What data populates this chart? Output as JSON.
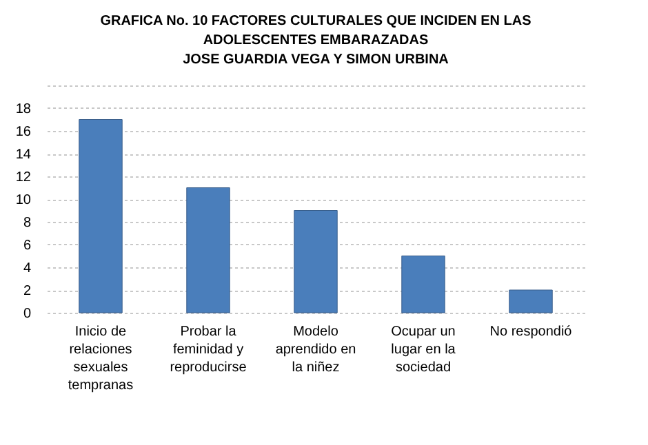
{
  "chart_data": {
    "type": "bar",
    "title": "GRAFICA No. 10 FACTORES CULTURALES QUE INCIDEN EN LAS ADOLESCENTES EMBARAZADAS",
    "subtitle": "JOSE GUARDIA VEGA Y SIMON URBINA",
    "categories": [
      "Inicio de relaciones sexuales tempranas",
      "Probar la feminidad y reproducirse",
      "Modelo aprendido en la niñez",
      "Ocupar un lugar en la sociedad",
      "No respondió"
    ],
    "values": [
      17,
      11,
      9,
      5,
      2
    ],
    "color": "#4a7ebb",
    "ylim": [
      0,
      20
    ],
    "yticks": [
      0,
      2,
      4,
      6,
      8,
      10,
      12,
      14,
      16,
      18,
      {
        "value": 20,
        "label": null
      }
    ],
    "grid": true
  }
}
